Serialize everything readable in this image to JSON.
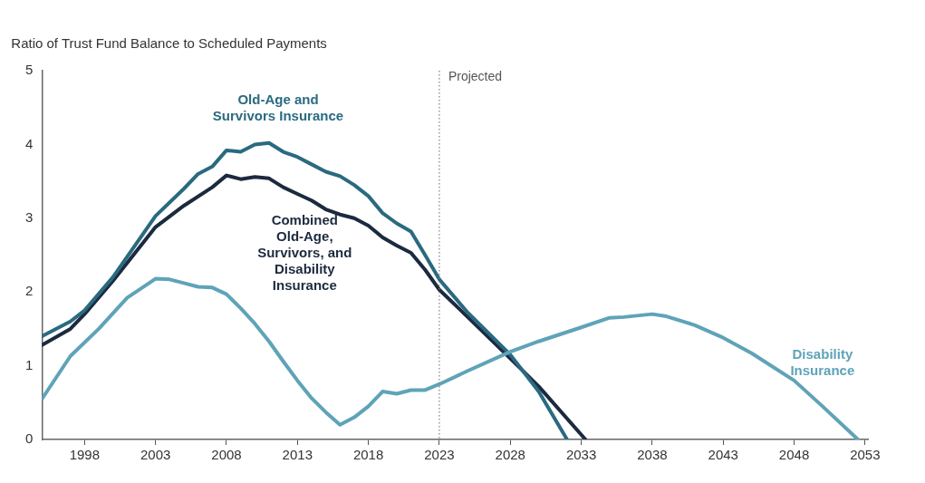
{
  "chart_data": {
    "type": "line",
    "ylabel": "Ratio of Trust Fund Balance to Scheduled Payments",
    "xlim": [
      1995,
      2053.2
    ],
    "xticks": [
      1998,
      2003,
      2008,
      2013,
      2018,
      2023,
      2028,
      2033,
      2038,
      2043,
      2048,
      2053
    ],
    "ylim": [
      0,
      5
    ],
    "yticks": [
      0,
      1,
      2,
      3,
      4,
      5
    ],
    "grid": false,
    "legend": false,
    "marker": "none",
    "line_style": "solid",
    "ref_lines": [
      {
        "axis": "x",
        "value": 2023,
        "label": "Projected",
        "color": "#7f7f7f",
        "line_style": "dotted"
      }
    ],
    "series": [
      {
        "name": "Disability\nInsurance",
        "color": "#5fa3b8",
        "x": [
          1995,
          1997,
          1999,
          2001,
          2003,
          2004,
          2005,
          2006,
          2007,
          2008,
          2009,
          2010,
          2011,
          2012,
          2013,
          2014,
          2015,
          2016,
          2017,
          2018,
          2019,
          2020,
          2021,
          2022,
          2023,
          2025,
          2028,
          2030,
          2033,
          2035,
          2036,
          2038,
          2039,
          2041,
          2043,
          2045,
          2048,
          2050,
          2052.5
        ],
        "values": [
          0.55,
          1.13,
          1.5,
          1.92,
          2.18,
          2.17,
          2.12,
          2.07,
          2.06,
          1.97,
          1.78,
          1.57,
          1.33,
          1.06,
          0.8,
          0.56,
          0.37,
          0.2,
          0.3,
          0.45,
          0.65,
          0.62,
          0.67,
          0.67,
          0.75,
          0.93,
          1.19,
          1.33,
          1.52,
          1.65,
          1.66,
          1.7,
          1.67,
          1.55,
          1.38,
          1.17,
          0.8,
          0.45,
          0
        ]
      },
      {
        "name": "Old-Age and\nSurvivors Insurance",
        "color": "#2a6a80",
        "x": [
          1995,
          1997,
          1998,
          2000,
          2003,
          2005,
          2006,
          2007,
          2008,
          2009,
          2010,
          2011,
          2012,
          2013,
          2014,
          2015,
          2016,
          2017,
          2018,
          2019,
          2020,
          2021,
          2022,
          2023,
          2025,
          2028,
          2030,
          2032
        ],
        "values": [
          1.4,
          1.6,
          1.75,
          2.2,
          3.03,
          3.4,
          3.6,
          3.7,
          3.92,
          3.9,
          4.0,
          4.02,
          3.9,
          3.83,
          3.73,
          3.63,
          3.57,
          3.45,
          3.3,
          3.07,
          2.93,
          2.82,
          2.5,
          2.17,
          1.72,
          1.15,
          0.65,
          0
        ]
      },
      {
        "name": "Combined\nOld-Age,\nSurvivors, and\nDisability\nInsurance",
        "color": "#1c2a3f",
        "x": [
          1995,
          1997,
          1998,
          2000,
          2003,
          2005,
          2007,
          2008,
          2009,
          2010,
          2011,
          2012,
          2013,
          2014,
          2015,
          2016,
          2017,
          2018,
          2019,
          2020,
          2021,
          2022,
          2023,
          2025,
          2028,
          2030,
          2033.3
        ],
        "values": [
          1.28,
          1.5,
          1.7,
          2.15,
          2.88,
          3.17,
          3.42,
          3.58,
          3.53,
          3.56,
          3.54,
          3.42,
          3.33,
          3.24,
          3.12,
          3.05,
          3.0,
          2.9,
          2.74,
          2.63,
          2.53,
          2.3,
          2.03,
          1.66,
          1.1,
          0.72,
          0
        ]
      }
    ]
  }
}
